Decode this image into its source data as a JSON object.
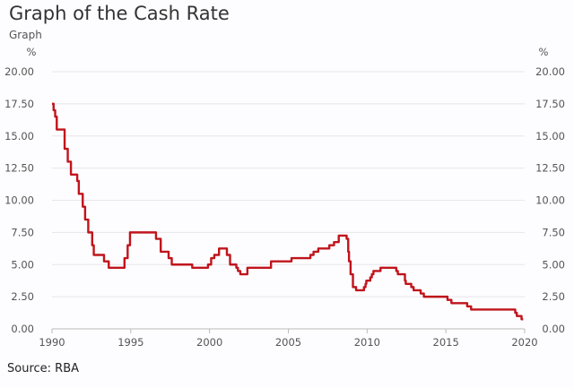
{
  "title": "Graph of the Cash Rate",
  "subtitle": "Graph",
  "source": "Source: RBA",
  "chart_data": {
    "type": "line",
    "title": "Graph of the Cash Rate",
    "ylabel": "%",
    "ylabel_right": "%",
    "xlim": [
      1990,
      2020
    ],
    "ylim": [
      0,
      20
    ],
    "yticks": [
      "0.00",
      "2.50",
      "5.00",
      "7.50",
      "10.00",
      "12.50",
      "15.00",
      "17.50",
      "20.00"
    ],
    "xticks": [
      "1990",
      "1995",
      "2000",
      "2005",
      "2010",
      "2015",
      "2020"
    ],
    "grid": true,
    "line_color": "#c0141c",
    "step": true,
    "points": [
      [
        1990.0,
        17.5
      ],
      [
        1990.1,
        17.0
      ],
      [
        1990.2,
        16.5
      ],
      [
        1990.3,
        15.5
      ],
      [
        1990.8,
        14.0
      ],
      [
        1991.0,
        13.0
      ],
      [
        1991.2,
        12.0
      ],
      [
        1991.6,
        11.5
      ],
      [
        1991.7,
        10.5
      ],
      [
        1991.95,
        9.5
      ],
      [
        1992.1,
        8.5
      ],
      [
        1992.3,
        7.5
      ],
      [
        1992.55,
        6.5
      ],
      [
        1992.65,
        5.75
      ],
      [
        1993.3,
        5.25
      ],
      [
        1993.6,
        4.75
      ],
      [
        1994.6,
        5.5
      ],
      [
        1994.8,
        6.5
      ],
      [
        1994.95,
        7.5
      ],
      [
        1996.6,
        7.0
      ],
      [
        1996.9,
        6.0
      ],
      [
        1997.4,
        5.5
      ],
      [
        1997.6,
        5.0
      ],
      [
        1998.9,
        4.75
      ],
      [
        1999.9,
        5.0
      ],
      [
        2000.1,
        5.5
      ],
      [
        2000.3,
        5.75
      ],
      [
        2000.6,
        6.25
      ],
      [
        2001.1,
        5.75
      ],
      [
        2001.3,
        5.0
      ],
      [
        2001.7,
        4.75
      ],
      [
        2001.8,
        4.5
      ],
      [
        2001.95,
        4.25
      ],
      [
        2002.4,
        4.75
      ],
      [
        2003.9,
        5.25
      ],
      [
        2005.2,
        5.5
      ],
      [
        2006.4,
        5.75
      ],
      [
        2006.6,
        6.0
      ],
      [
        2006.9,
        6.25
      ],
      [
        2007.6,
        6.5
      ],
      [
        2007.9,
        6.75
      ],
      [
        2008.2,
        7.25
      ],
      [
        2008.7,
        7.0
      ],
      [
        2008.8,
        6.0
      ],
      [
        2008.85,
        5.25
      ],
      [
        2008.95,
        4.25
      ],
      [
        2009.1,
        3.25
      ],
      [
        2009.3,
        3.0
      ],
      [
        2009.8,
        3.25
      ],
      [
        2009.9,
        3.5
      ],
      [
        2009.95,
        3.75
      ],
      [
        2010.2,
        4.0
      ],
      [
        2010.3,
        4.25
      ],
      [
        2010.4,
        4.5
      ],
      [
        2010.85,
        4.75
      ],
      [
        2011.85,
        4.5
      ],
      [
        2011.95,
        4.25
      ],
      [
        2012.4,
        3.75
      ],
      [
        2012.45,
        3.5
      ],
      [
        2012.8,
        3.25
      ],
      [
        2012.95,
        3.0
      ],
      [
        2013.4,
        2.75
      ],
      [
        2013.6,
        2.5
      ],
      [
        2015.1,
        2.25
      ],
      [
        2015.35,
        2.0
      ],
      [
        2016.35,
        1.75
      ],
      [
        2016.6,
        1.5
      ],
      [
        2019.4,
        1.25
      ],
      [
        2019.5,
        1.0
      ],
      [
        2019.8,
        0.75
      ],
      [
        2019.9,
        0.75
      ]
    ]
  }
}
